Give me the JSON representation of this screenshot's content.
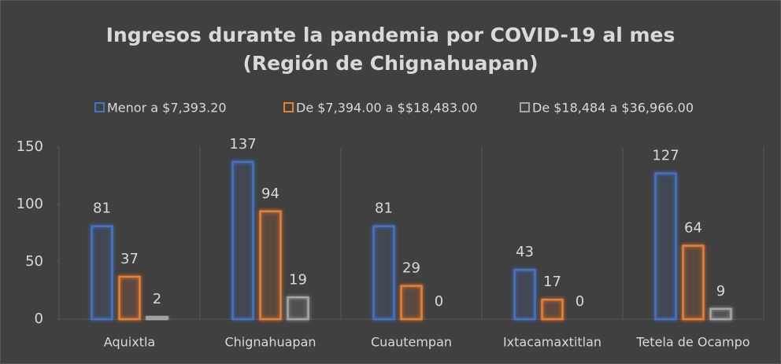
{
  "chart_data": {
    "type": "bar",
    "title": [
      "Ingresos durante la pandemia por COVID-19 al mes",
      "(Región de Chignahuapan)"
    ],
    "categories": [
      "Aquixtla",
      "Chignahuapan",
      "Cuautempan",
      "Ixtacamaxtitlan",
      "Tetela de Ocampo"
    ],
    "series": [
      {
        "name": "Menor a $7,393.20",
        "color": "#4472c4",
        "values": [
          81,
          137,
          81,
          43,
          127
        ]
      },
      {
        "name": "De $7,394.00 a $$18,483.00",
        "color": "#ed7d31",
        "values": [
          37,
          94,
          29,
          17,
          64
        ]
      },
      {
        "name": "De $18,484 a $36,966.00",
        "color": "#a5a5a5",
        "values": [
          2,
          19,
          0,
          0,
          9
        ]
      }
    ],
    "ylim": [
      0,
      150
    ],
    "yticks": [
      0,
      50,
      100,
      150
    ],
    "legend": "top"
  }
}
